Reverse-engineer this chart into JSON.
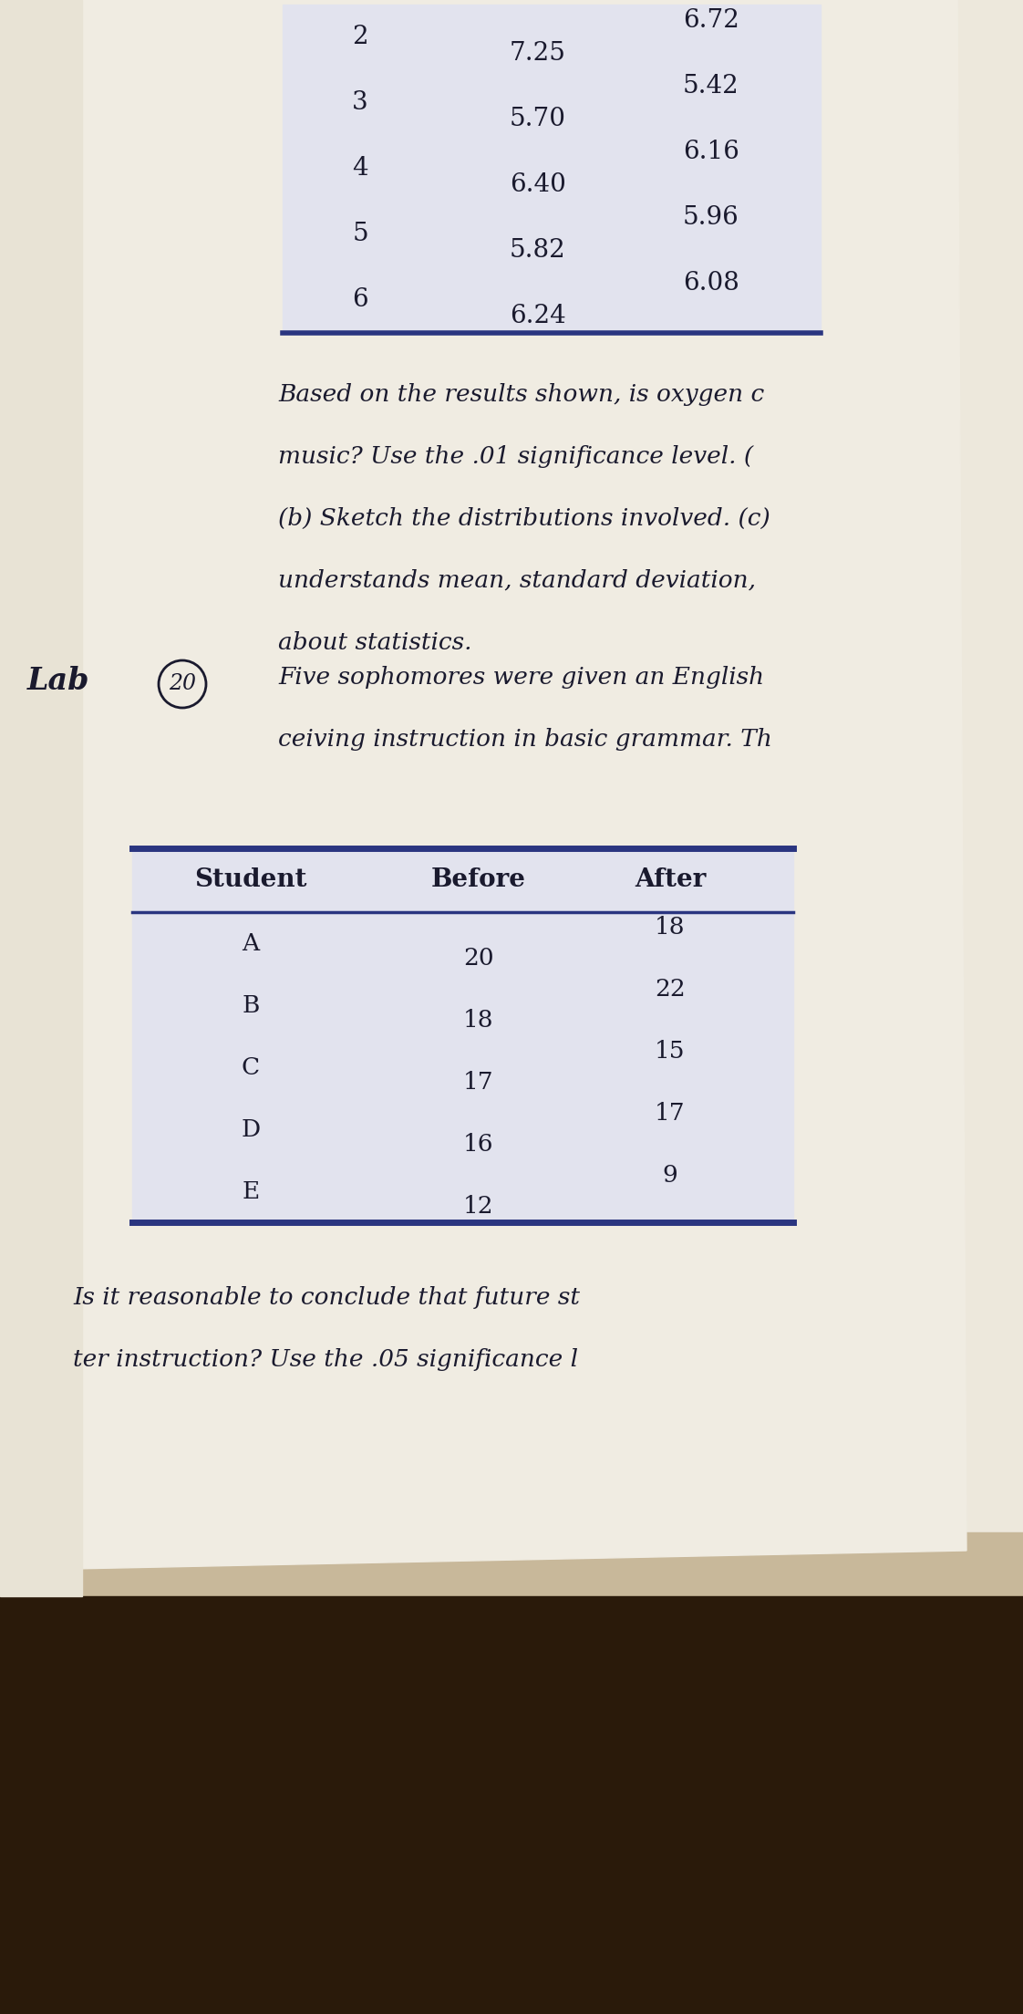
{
  "page_bg": "#e8e4d8",
  "paper_bg": "#f0ede5",
  "wood_bg": "#3a2510",
  "top_table": {
    "rows": [
      [
        "2",
        "7.25",
        "6.72"
      ],
      [
        "3",
        "5.70",
        "5.42"
      ],
      [
        "4",
        "6.40",
        "6.16"
      ],
      [
        "5",
        "5.82",
        "5.96"
      ],
      [
        "6",
        "6.24",
        "6.08"
      ]
    ],
    "border_color": "#2a3580",
    "bg_color": "#e2e3ee",
    "text_color": "#1a1a2e",
    "font_size": 20
  },
  "paragraph1_lines": [
    "Based on the results shown, is oxygen c",
    "music? Use the .01 significance level. (",
    "(b) Sketch the distributions involved. (c)",
    "understands mean, standard deviation,",
    "about statistics."
  ],
  "paragraph1_fontsize": 19,
  "paragraph1_color": "#1a1a2e",
  "lab_label": "Lab",
  "lab_fontsize": 24,
  "lab_color": "#1a1a2e",
  "circle_number": "20",
  "circle_fontsize": 17,
  "paragraph2_lines": [
    "Five sophomores were given an English",
    "ceiving instruction in basic grammar. Th"
  ],
  "paragraph2_fontsize": 19,
  "paragraph2_color": "#1a1a2e",
  "bottom_table": {
    "headers": [
      "Student",
      "Before",
      "After"
    ],
    "rows": [
      [
        "A",
        "20",
        "18"
      ],
      [
        "B",
        "18",
        "22"
      ],
      [
        "C",
        "17",
        "15"
      ],
      [
        "D",
        "16",
        "17"
      ],
      [
        "E",
        "12",
        "9"
      ]
    ],
    "border_color": "#2a3580",
    "bg_color": "#e2e3ee",
    "header_fontsize": 20,
    "data_fontsize": 19,
    "text_color": "#1a1a2e"
  },
  "paragraph3_lines": [
    "Is it reasonable to conclude that future st",
    "ter instruction? Use the .05 significance l"
  ],
  "paragraph3_fontsize": 19,
  "paragraph3_color": "#1a1a2e"
}
